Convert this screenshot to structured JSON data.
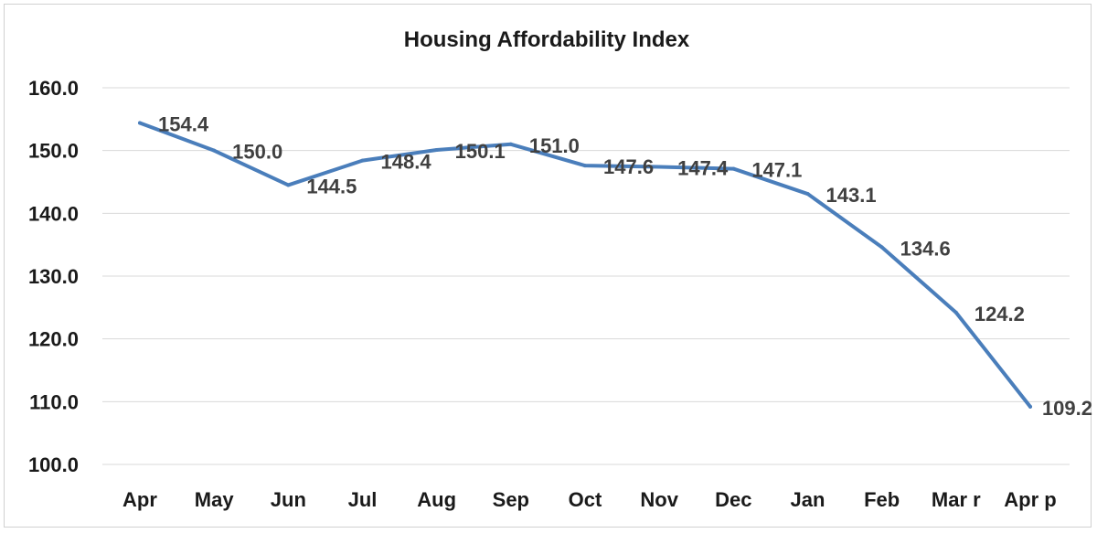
{
  "chart_data": {
    "type": "line",
    "title": "Housing Affordability Index",
    "xlabel": "",
    "ylabel": "",
    "categories": [
      "Apr",
      "May",
      "Jun",
      "Jul",
      "Aug",
      "Sep",
      "Oct",
      "Nov",
      "Dec",
      "Jan",
      "Feb",
      "Mar r",
      "Apr p"
    ],
    "series": [
      {
        "values": [
          154.4,
          150.0,
          144.5,
          148.4,
          150.1,
          151.0,
          147.6,
          147.4,
          147.1,
          143.1,
          134.6,
          124.2,
          109.2
        ],
        "value_labels": [
          "154.4",
          "150.0",
          "144.5",
          "148.4",
          "150.1",
          "151.0",
          "147.6",
          "147.4",
          "147.1",
          "143.1",
          "134.6",
          "124.2",
          "109.2"
        ],
        "color": "#4a7ebb"
      }
    ],
    "ylim": [
      100,
      160
    ],
    "yticks": [
      "100.0",
      "110.0",
      "120.0",
      "130.0",
      "140.0",
      "150.0",
      "160.0"
    ],
    "grid": true,
    "legend": "none"
  }
}
